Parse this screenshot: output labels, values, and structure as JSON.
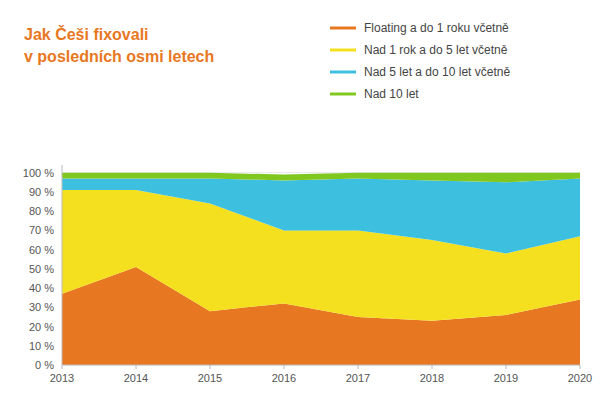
{
  "chart_data": {
    "type": "area",
    "stacked": true,
    "title": "Jak Češi fixovali",
    "subtitle": "v posledních osmi letech",
    "x": [
      2013,
      2014,
      2015,
      2016,
      2017,
      2018,
      2019,
      2020
    ],
    "xlim": [
      2013,
      2020
    ],
    "xticks": [
      2013,
      2014,
      2015,
      2016,
      2017,
      2018,
      2019,
      2020
    ],
    "ylim": [
      0,
      104
    ],
    "yticks": [
      {
        "value": 0,
        "label": "0 %"
      },
      {
        "value": 10,
        "label": "10 %"
      },
      {
        "value": 20,
        "label": "20 %"
      },
      {
        "value": 30,
        "label": "30 %"
      },
      {
        "value": 40,
        "label": "40 %"
      },
      {
        "value": 50,
        "label": "50 %"
      },
      {
        "value": 60,
        "label": "60 %"
      },
      {
        "value": 70,
        "label": "70 %"
      },
      {
        "value": 80,
        "label": "80 %"
      },
      {
        "value": 90,
        "label": "90 %"
      },
      {
        "value": 100,
        "label": "100 %"
      }
    ],
    "grid": true,
    "legend": "top-right",
    "series": [
      {
        "name": "Floating a do 1 roku včetně",
        "color": "#E87722",
        "values": [
          37,
          51,
          28,
          32,
          25,
          23,
          26,
          34
        ]
      },
      {
        "name": "Nad 1 rok a do 5 let včetně",
        "color": "#F5E020",
        "values": [
          54,
          40,
          56,
          38,
          45,
          42,
          32,
          33
        ]
      },
      {
        "name": "Nad 5 let a do 10 let včetně",
        "color": "#3DC0E0",
        "values": [
          6,
          6,
          13,
          26,
          27,
          31,
          37,
          30
        ]
      },
      {
        "name": "Nad 10 let",
        "color": "#80C820",
        "values": [
          3,
          3,
          3,
          3,
          3,
          4,
          5,
          3
        ]
      }
    ]
  }
}
